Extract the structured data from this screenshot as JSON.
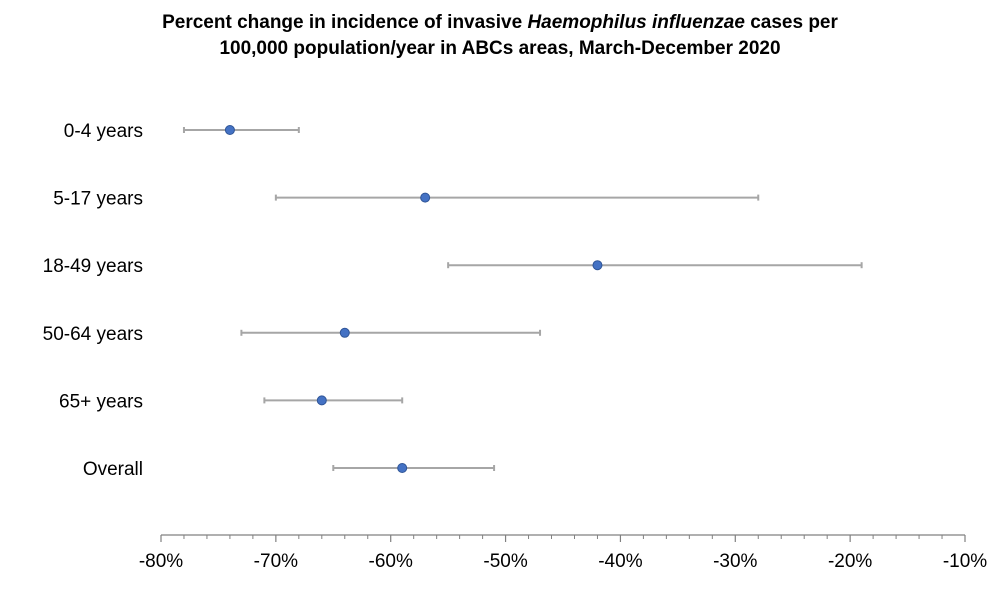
{
  "chart_data": {
    "type": "scatter",
    "title": {
      "line1_before": "Percent change in incidence of invasive ",
      "line1_italic": "Haemophilus influenzae",
      "line1_after": " cases per",
      "line2": "100,000 population/year in ABCs areas, March-December 2020"
    },
    "categories": [
      "0-4 years",
      "5-17 years",
      "18-49 years",
      "50-64 years",
      "65+ years",
      "Overall"
    ],
    "values": [
      -74,
      -57,
      -42,
      -64,
      -66,
      -59
    ],
    "ci_lower": [
      -78,
      -70,
      -55,
      -73,
      -71,
      -65
    ],
    "ci_upper": [
      -68,
      -28,
      -19,
      -47,
      -59,
      -51
    ],
    "xlim": [
      -80,
      -10
    ],
    "xticks": [
      -80,
      -70,
      -60,
      -50,
      -40,
      -30,
      -20,
      -10
    ],
    "xtick_labels": [
      "-80%",
      "-70%",
      "-60%",
      "-50%",
      "-40%",
      "-30%",
      "-20%",
      "-10%"
    ],
    "xlabel": "",
    "ylabel": "",
    "grid": false,
    "legend": "none",
    "colors": {
      "point": "#4472C4",
      "point_edge": "#2F5597",
      "error_bar": "#A6A6A6",
      "axis": "#808080"
    }
  }
}
